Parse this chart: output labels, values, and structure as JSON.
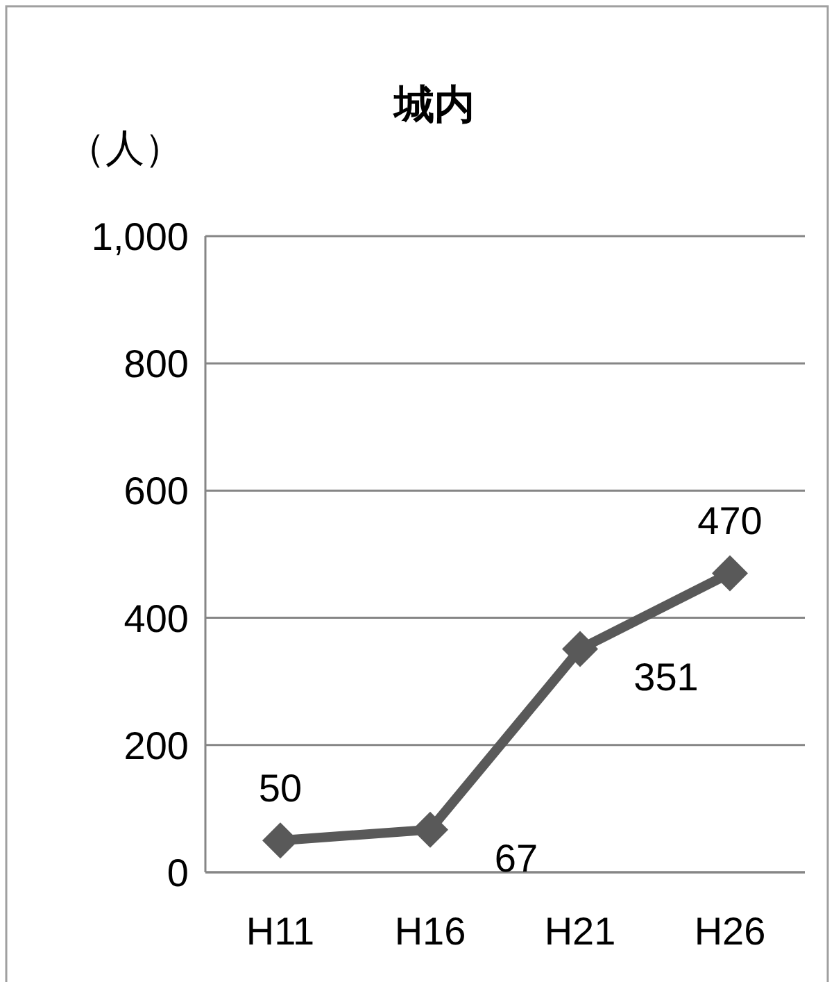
{
  "chart_data": {
    "type": "line",
    "title": "城内",
    "ylabel": "（人）",
    "categories": [
      "H11",
      "H16",
      "H21",
      "H26"
    ],
    "series": [
      {
        "color": "#595959",
        "values": [
          50,
          67,
          351,
          470
        ]
      }
    ],
    "ylim": [
      0,
      1000
    ],
    "yticks": [
      0,
      200,
      400,
      600,
      800,
      {
        "value": 1000,
        "label": "1,000"
      }
    ],
    "grid": "y",
    "marker": "diamond",
    "line_style": "solid",
    "data_labels": true
  }
}
